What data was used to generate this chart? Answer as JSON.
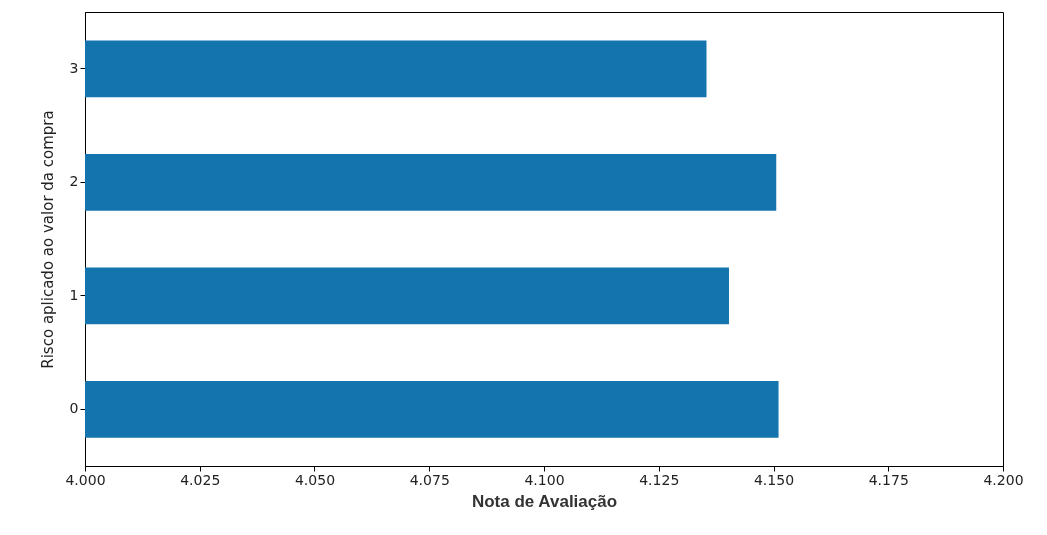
{
  "chart_data": {
    "type": "bar",
    "orientation": "horizontal",
    "xlabel": "Nota de Avaliação",
    "ylabel": "Risco aplicado ao valor da compra",
    "categories": [
      "3",
      "2",
      "1",
      "0"
    ],
    "values": [
      4.1354,
      4.1506,
      4.1403,
      4.1511
    ],
    "color": "#1474ae",
    "xlim": [
      4.0,
      4.2
    ],
    "xticks": [
      {
        "value": 4.0,
        "label": "4.000"
      },
      {
        "value": 4.025,
        "label": "4.025"
      },
      {
        "value": 4.05,
        "label": "4.050"
      },
      {
        "value": 4.075,
        "label": "4.075"
      },
      {
        "value": 4.1,
        "label": "4.100"
      },
      {
        "value": 4.125,
        "label": "4.125"
      },
      {
        "value": 4.15,
        "label": "4.150"
      },
      {
        "value": 4.175,
        "label": "4.175"
      },
      {
        "value": 4.2,
        "label": "4.200"
      }
    ],
    "grid": false
  }
}
